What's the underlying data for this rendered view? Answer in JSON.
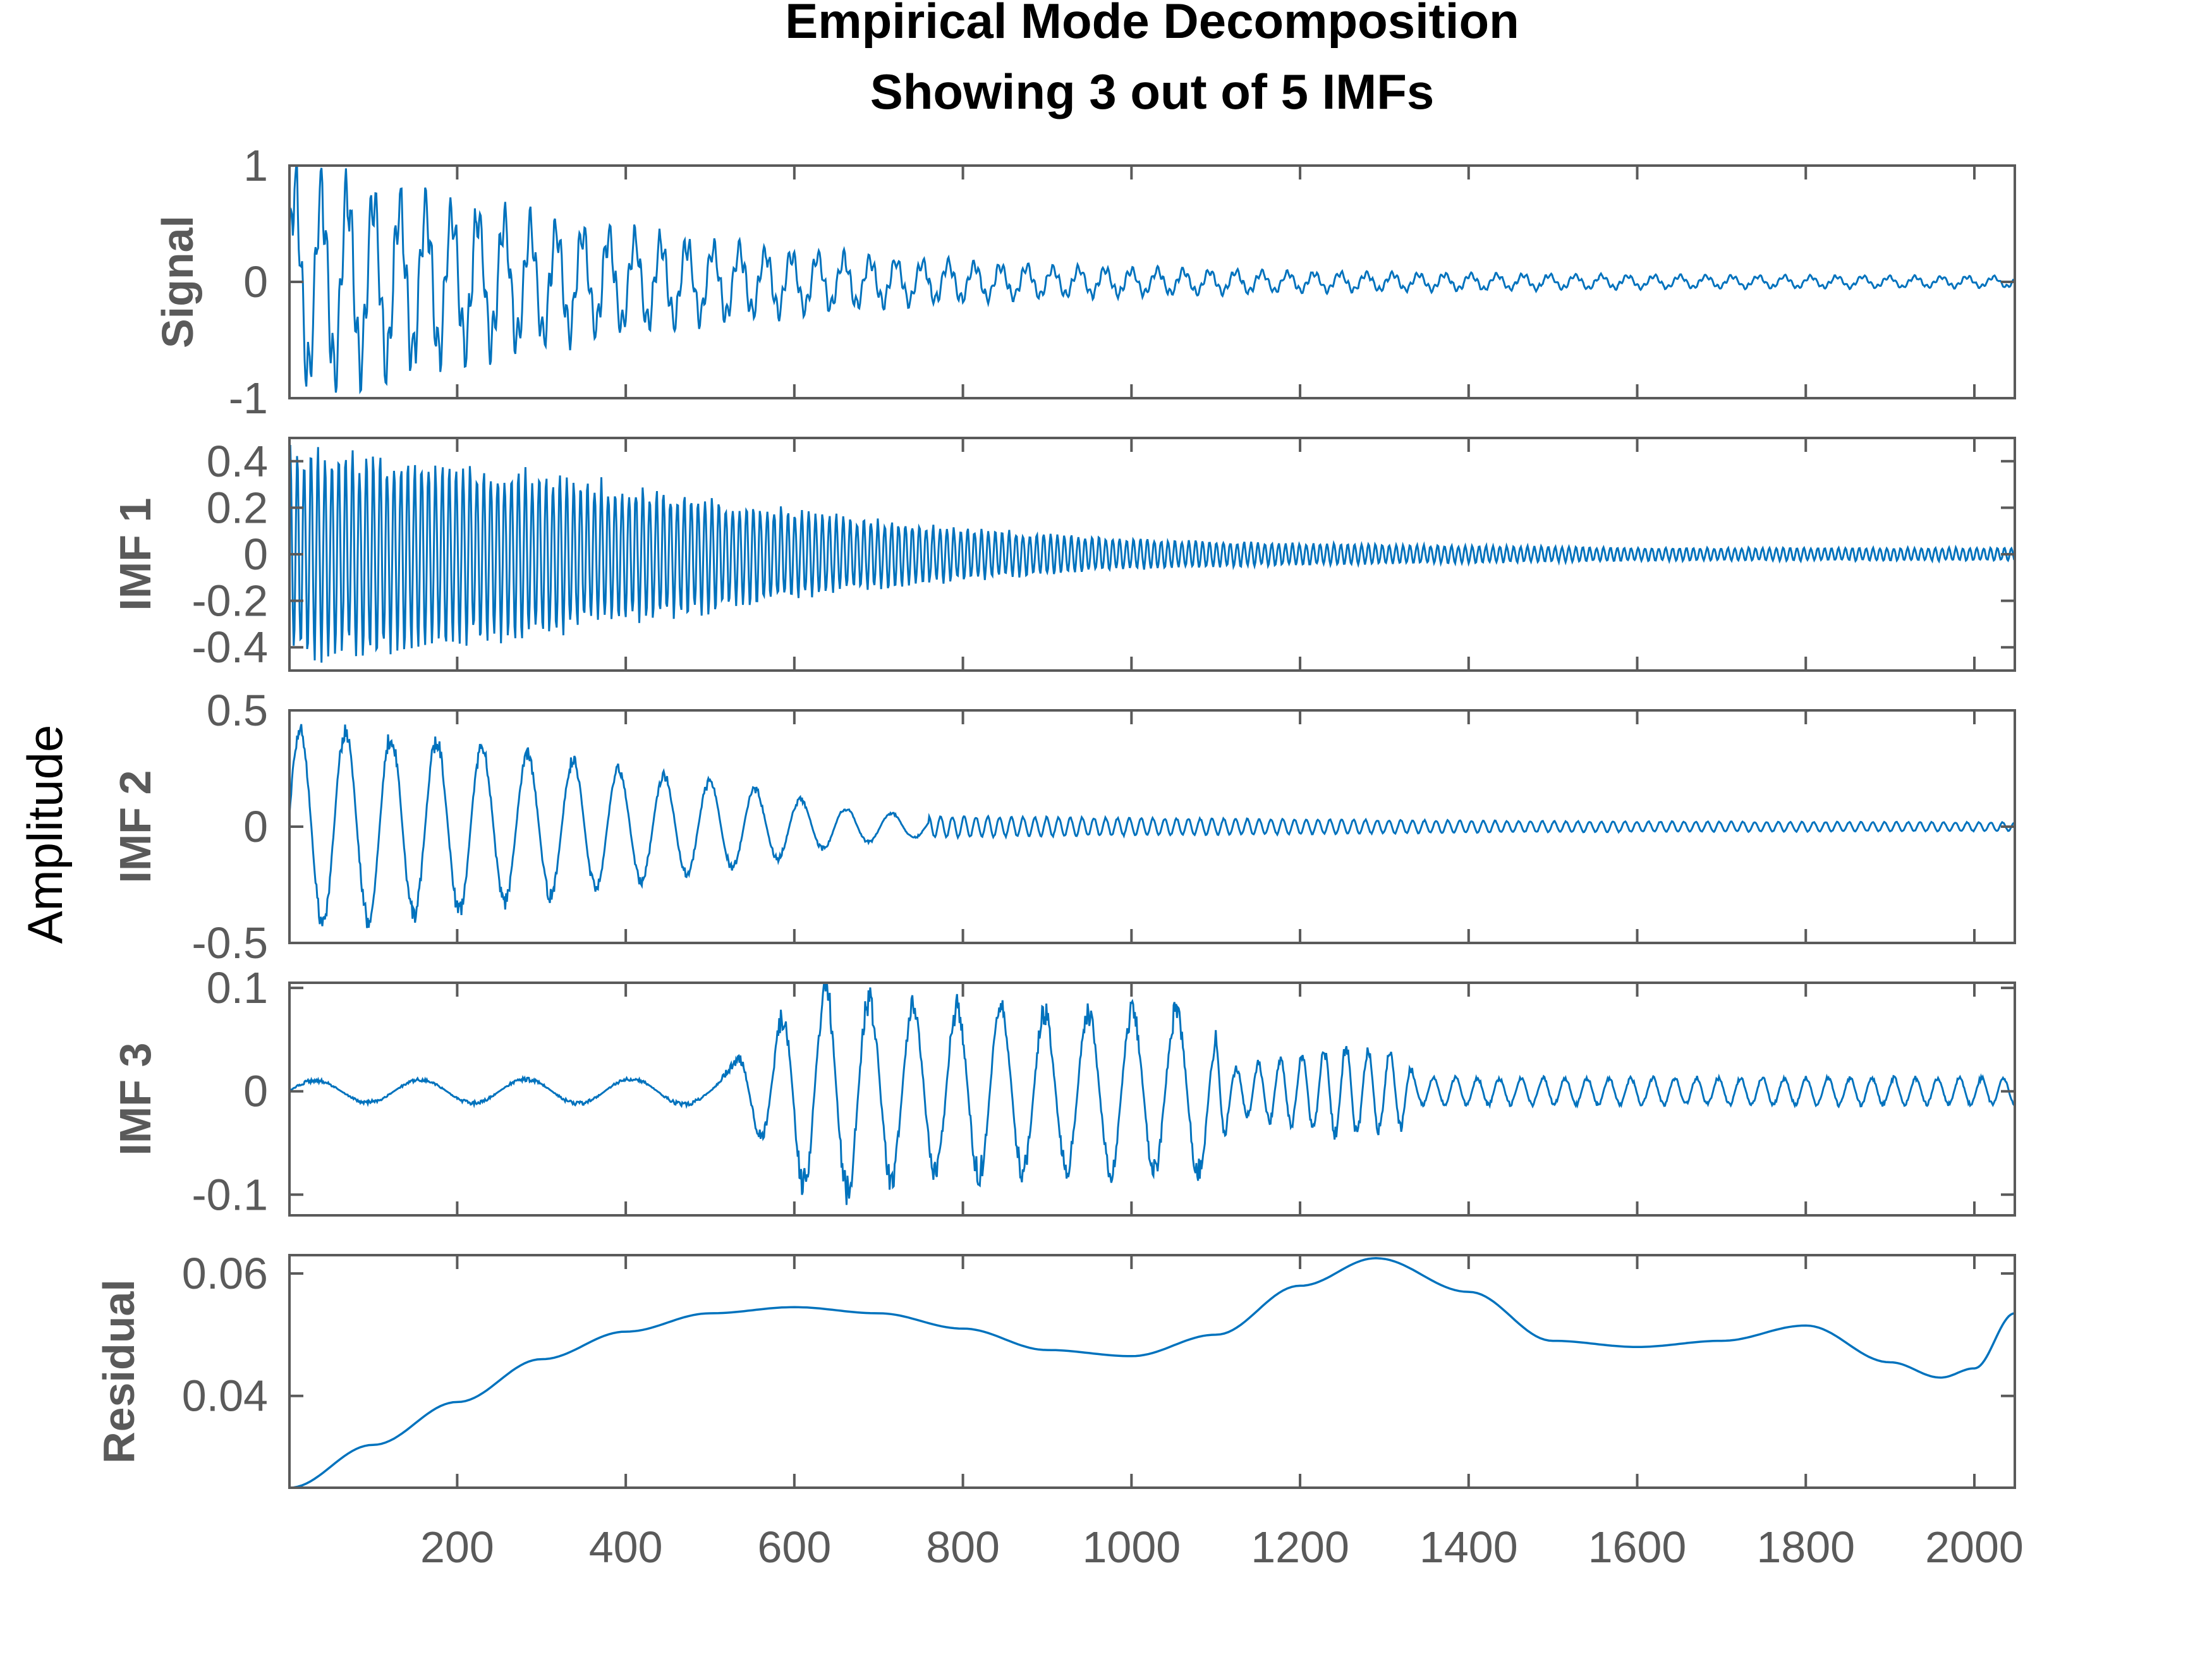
{
  "figure": {
    "title_line1": "Empirical Mode Decomposition",
    "title_line2": "Showing 3 out of 5 IMFs",
    "ylabel": "Amplitude"
  },
  "colors": {
    "line": "#0072BD",
    "axes": "#5a5a5a",
    "text": "#5a5a5a",
    "title": "#000000"
  },
  "chart_data": {
    "type": "line",
    "xlim": [
      1,
      2048
    ],
    "x_ticks": [
      200,
      400,
      600,
      800,
      1000,
      1200,
      1400,
      1600,
      1800,
      2000
    ],
    "x_tick_labels": [
      "200",
      "400",
      "600",
      "800",
      "1000",
      "1200",
      "1400",
      "1600",
      "1800",
      "2000"
    ],
    "panels": [
      {
        "name": "Signal",
        "ylabel": "Signal",
        "ylim": [
          -1,
          1
        ],
        "y_ticks": [
          -1,
          0,
          1
        ],
        "y_tick_labels": [
          "-1",
          "0",
          "1"
        ],
        "envelope_points": [
          [
            1,
            1.0
          ],
          [
            100,
            0.85
          ],
          [
            300,
            0.55
          ],
          [
            500,
            0.35
          ],
          [
            700,
            0.22
          ],
          [
            900,
            0.14
          ],
          [
            1200,
            0.09
          ],
          [
            1600,
            0.06
          ],
          [
            2048,
            0.05
          ]
        ]
      },
      {
        "name": "IMF 1",
        "ylabel": "IMF 1",
        "ylim": [
          -0.5,
          0.5
        ],
        "y_ticks": [
          -0.4,
          -0.2,
          0,
          0.2,
          0.4
        ],
        "y_tick_labels": [
          "-0.4",
          "-0.2",
          "0",
          "0.2",
          "0.4"
        ],
        "envelope_points": [
          [
            1,
            0.48
          ],
          [
            200,
            0.42
          ],
          [
            400,
            0.32
          ],
          [
            600,
            0.2
          ],
          [
            800,
            0.12
          ],
          [
            1000,
            0.07
          ],
          [
            1200,
            0.05
          ],
          [
            1600,
            0.03
          ],
          [
            2048,
            0.03
          ]
        ]
      },
      {
        "name": "IMF 2",
        "ylabel": "IMF 2",
        "ylim": [
          -0.5,
          0.5
        ],
        "y_ticks": [
          -0.5,
          0,
          0.5
        ],
        "y_tick_labels": [
          "-0.5",
          "0",
          "0.5"
        ],
        "envelope_points": [
          [
            1,
            0.48
          ],
          [
            200,
            0.4
          ],
          [
            400,
            0.27
          ],
          [
            550,
            0.18
          ],
          [
            650,
            0.09
          ],
          [
            750,
            0.05
          ],
          [
            1000,
            0.04
          ],
          [
            1500,
            0.025
          ],
          [
            2048,
            0.02
          ]
        ]
      },
      {
        "name": "IMF 3",
        "ylabel": "IMF 3",
        "ylim": [
          -0.12,
          0.105
        ],
        "y_ticks": [
          -0.1,
          0,
          0.1
        ],
        "y_tick_labels": [
          "-0.1",
          "0",
          "0.1"
        ],
        "envelope_points": [
          [
            1,
            0.012
          ],
          [
            500,
            0.015
          ],
          [
            560,
            0.05
          ],
          [
            600,
            0.1
          ],
          [
            650,
            0.12
          ],
          [
            700,
            0.1
          ],
          [
            900,
            0.09
          ],
          [
            1090,
            0.09
          ],
          [
            1120,
            0.025
          ],
          [
            1250,
            0.05
          ],
          [
            1320,
            0.04
          ],
          [
            1340,
            0.015
          ],
          [
            2048,
            0.015
          ]
        ]
      },
      {
        "name": "Residual",
        "ylabel": "Residual",
        "ylim": [
          0.025,
          0.063
        ],
        "y_ticks": [
          0.04,
          0.06
        ],
        "y_tick_labels": [
          "0.04",
          "0.06"
        ],
        "points": [
          [
            1,
            0.025
          ],
          [
            100,
            0.032
          ],
          [
            200,
            0.039
          ],
          [
            300,
            0.046
          ],
          [
            400,
            0.0505
          ],
          [
            500,
            0.0535
          ],
          [
            600,
            0.0545
          ],
          [
            700,
            0.0535
          ],
          [
            800,
            0.051
          ],
          [
            900,
            0.0475
          ],
          [
            1000,
            0.0465
          ],
          [
            1100,
            0.05
          ],
          [
            1200,
            0.058
          ],
          [
            1290,
            0.0625
          ],
          [
            1400,
            0.057
          ],
          [
            1500,
            0.049
          ],
          [
            1600,
            0.048
          ],
          [
            1700,
            0.049
          ],
          [
            1800,
            0.0515
          ],
          [
            1900,
            0.0455
          ],
          [
            1960,
            0.043
          ],
          [
            2000,
            0.0445
          ],
          [
            2048,
            0.0535
          ]
        ]
      }
    ]
  }
}
